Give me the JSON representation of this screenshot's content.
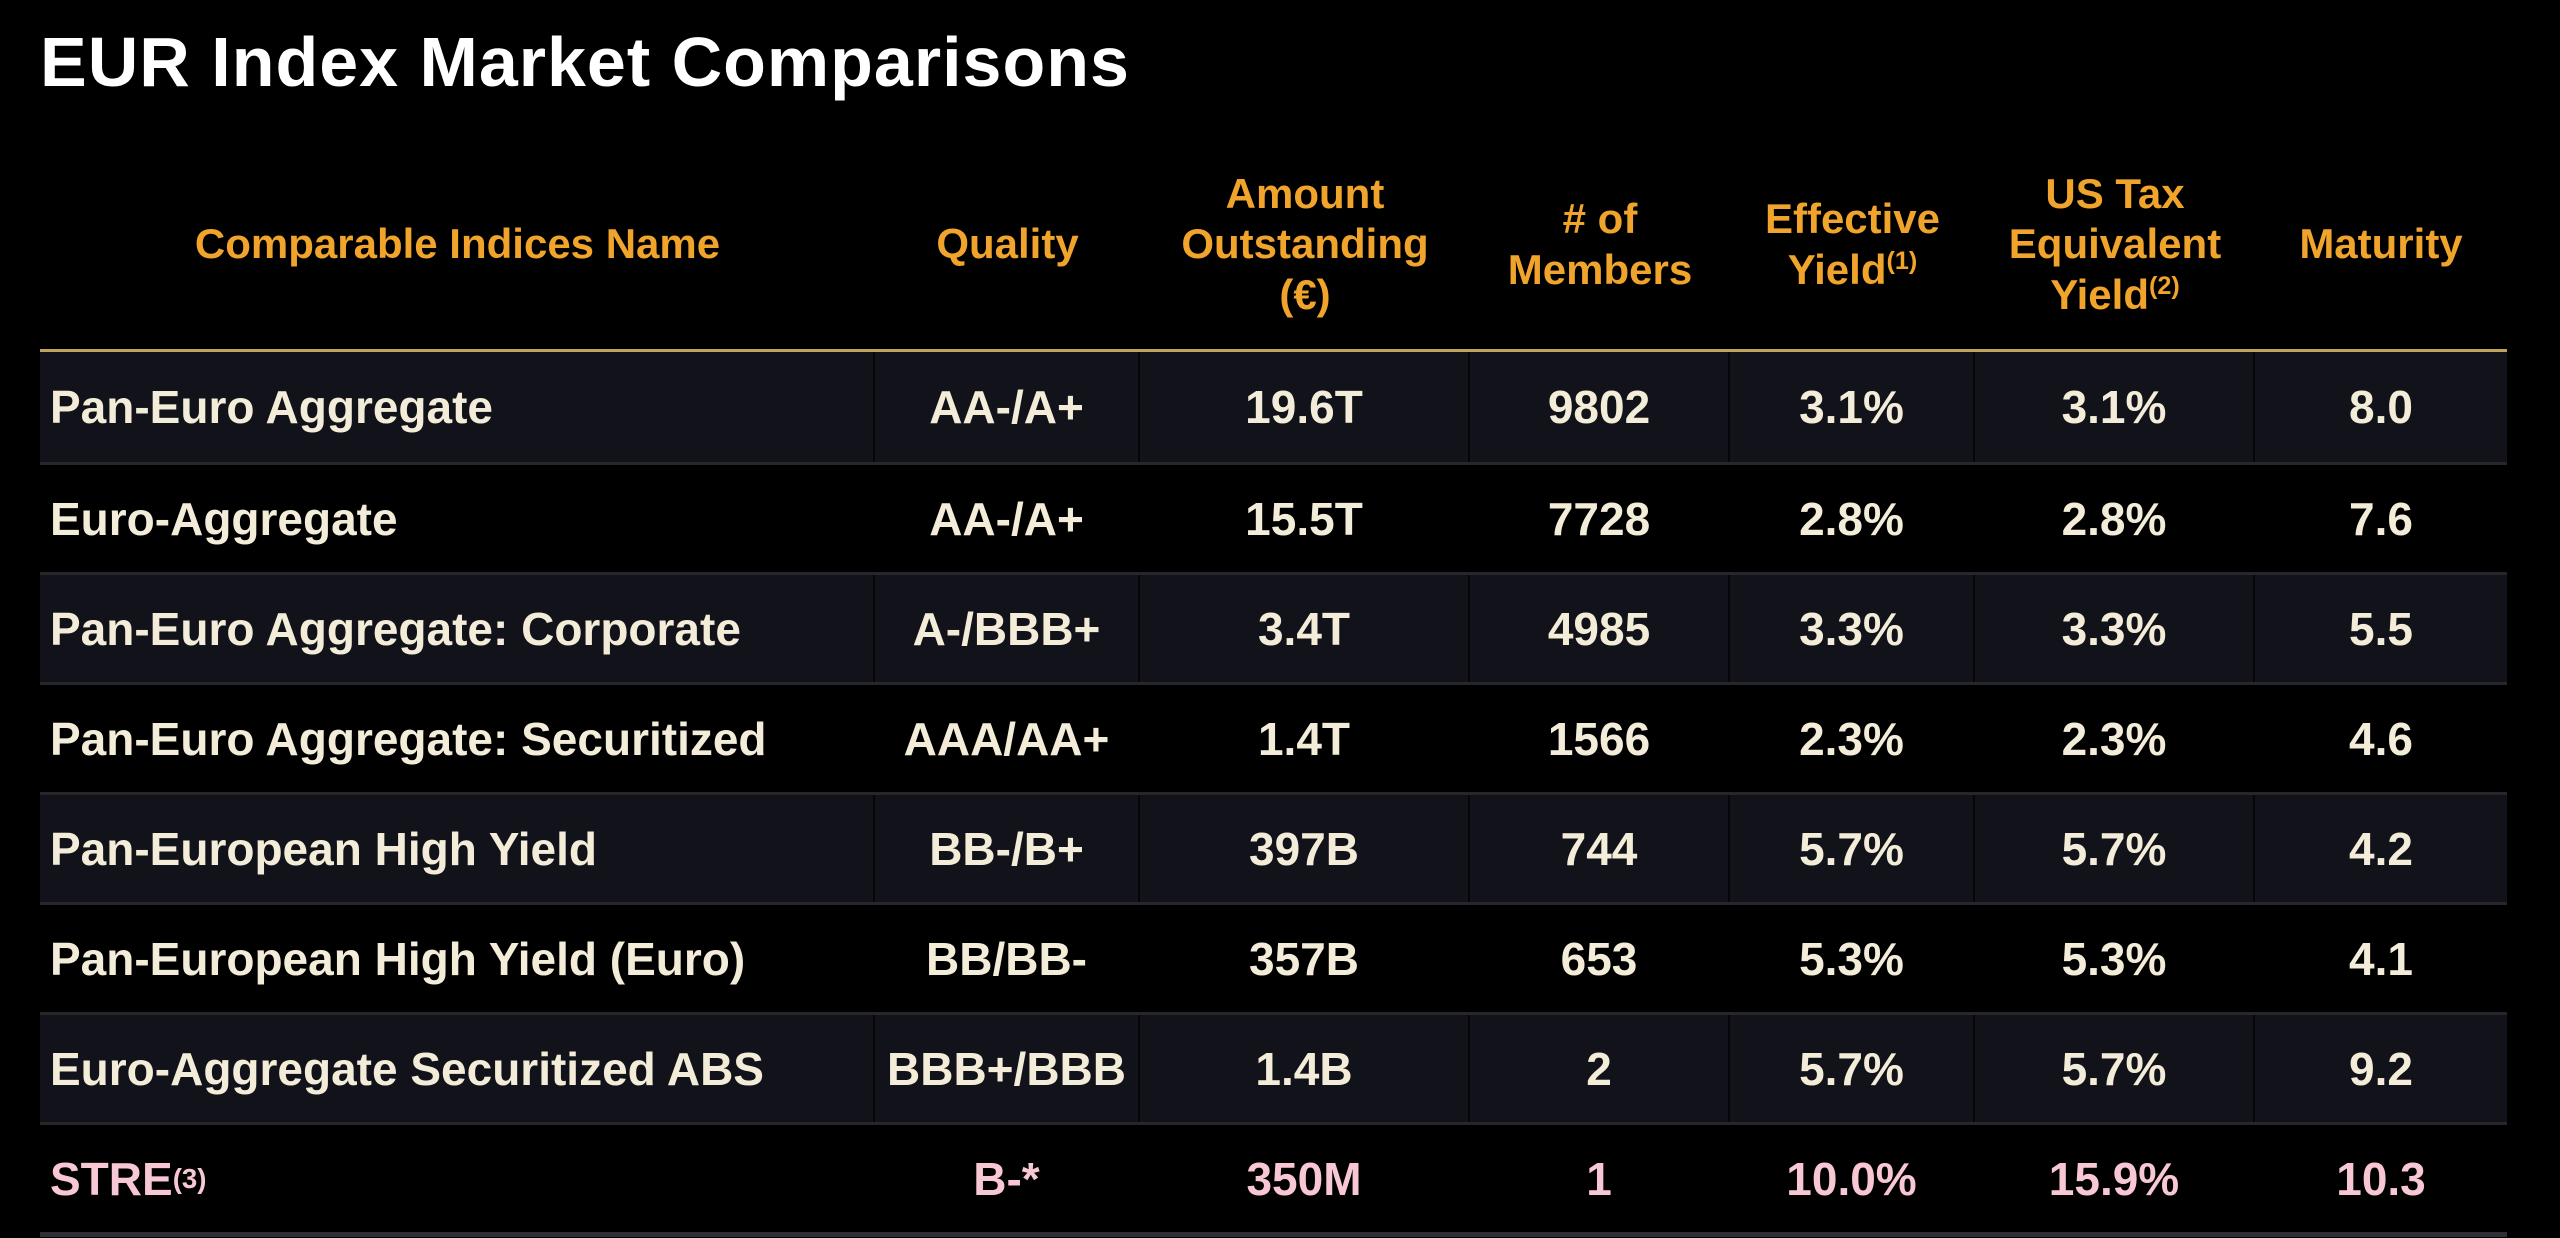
{
  "title": "EUR Index Market Comparisons",
  "colors": {
    "background": "#000000",
    "title_text": "#FFFFFF",
    "header_text": "#F0A42B",
    "header_rule": "#BFA45E",
    "body_text": "#F2ECD8",
    "highlight_row_text": "#F8C7D4",
    "row_alt_background": "#12121A",
    "row_separator": "#26262B",
    "bottom_strip": "#303034"
  },
  "chart_data": {
    "type": "table",
    "title": "EUR Index Market Comparisons",
    "columns": [
      {
        "key": "name",
        "label": "Comparable Indices Name",
        "lines": [
          "Comparable Indices Name"
        ],
        "sup": "",
        "align": "left"
      },
      {
        "key": "quality",
        "label": "Quality",
        "lines": [
          "Quality"
        ],
        "sup": "",
        "align": "center"
      },
      {
        "key": "amount_outstanding_eur",
        "label": "Amount Outstanding (€)",
        "lines": [
          "Amount",
          "Outstanding",
          "(€)"
        ],
        "sup": "",
        "align": "center"
      },
      {
        "key": "num_members",
        "label": "# of Members",
        "lines": [
          "# of",
          "Members"
        ],
        "sup": "",
        "align": "center"
      },
      {
        "key": "effective_yield",
        "label": "Effective Yield",
        "lines": [
          "Effective",
          "Yield"
        ],
        "sup": "(1)",
        "align": "center"
      },
      {
        "key": "us_tax_equivalent_yield",
        "label": "US Tax Equivalent Yield",
        "lines": [
          "US Tax",
          "Equivalent",
          "Yield"
        ],
        "sup": "(2)",
        "align": "center"
      },
      {
        "key": "maturity",
        "label": "Maturity",
        "lines": [
          "Maturity"
        ],
        "sup": "",
        "align": "center"
      }
    ],
    "rows": [
      {
        "cells": [
          "Pan-Euro Aggregate",
          "AA-/A+",
          "19.6T",
          "9802",
          "3.1%",
          "3.1%",
          "8.0"
        ],
        "name_sup": "",
        "highlight": false
      },
      {
        "cells": [
          "Euro-Aggregate",
          "AA-/A+",
          "15.5T",
          "7728",
          "2.8%",
          "2.8%",
          "7.6"
        ],
        "name_sup": "",
        "highlight": false
      },
      {
        "cells": [
          "Pan-Euro Aggregate: Corporate",
          "A-/BBB+",
          "3.4T",
          "4985",
          "3.3%",
          "3.3%",
          "5.5"
        ],
        "name_sup": "",
        "highlight": false
      },
      {
        "cells": [
          "Pan-Euro Aggregate: Securitized",
          "AAA/AA+",
          "1.4T",
          "1566",
          "2.3%",
          "2.3%",
          "4.6"
        ],
        "name_sup": "",
        "highlight": false
      },
      {
        "cells": [
          "Pan-European High Yield",
          "BB-/B+",
          "397B",
          "744",
          "5.7%",
          "5.7%",
          "4.2"
        ],
        "name_sup": "",
        "highlight": false
      },
      {
        "cells": [
          "Pan-European High Yield (Euro)",
          "BB/BB-",
          "357B",
          "653",
          "5.3%",
          "5.3%",
          "4.1"
        ],
        "name_sup": "",
        "highlight": false
      },
      {
        "cells": [
          "Euro-Aggregate Securitized ABS",
          "BBB+/BBB",
          "1.4B",
          "2",
          "5.7%",
          "5.7%",
          "9.2"
        ],
        "name_sup": "",
        "highlight": false
      },
      {
        "cells": [
          "STRE",
          "B-*",
          "350M",
          "1",
          "10.0%",
          "15.9%",
          "10.3"
        ],
        "name_sup": "(3)",
        "highlight": true
      }
    ]
  }
}
